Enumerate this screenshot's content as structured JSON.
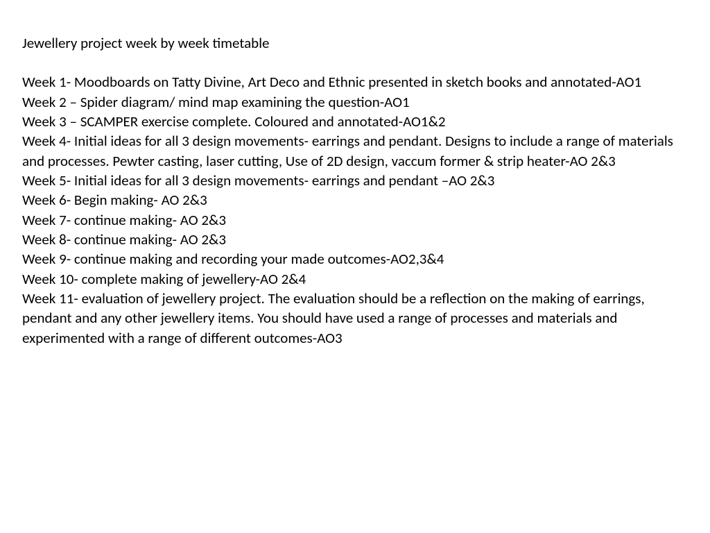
{
  "document": {
    "title": "Jewellery project week by week timetable",
    "font_family": "Calibri",
    "title_fontsize": 21,
    "body_fontsize": 21,
    "text_color": "#000000",
    "background_color": "#ffffff",
    "line_height": 1.35,
    "weeks": [
      "Week 1- Moodboards on Tatty Divine, Art Deco and Ethnic presented in sketch books and annotated-AO1",
      "Week 2 – Spider diagram/ mind map examining the question-AO1",
      "Week 3 – SCAMPER exercise complete. Coloured and annotated-AO1&2",
      "Week 4- Initial ideas for all 3 design movements- earrings and pendant. Designs to include a range of materials and processes. Pewter casting, laser cutting, Use of  2D design, vaccum former & strip heater-AO 2&3",
      "Week 5- Initial ideas for all 3 design movements- earrings and pendant –AO 2&3",
      "Week 6- Begin making- AO 2&3",
      "Week 7- continue making- AO 2&3",
      "Week 8- continue making- AO 2&3",
      "Week 9- continue making and recording your made outcomes-AO2,3&4",
      "Week 10- complete making of jewellery-AO 2&4",
      "Week 11- evaluation of jewellery project. The evaluation should  be a reflection on the making of earrings, pendant and any other jewellery items. You should have used a range of processes and materials and experimented with a range of different outcomes-AO3"
    ]
  }
}
